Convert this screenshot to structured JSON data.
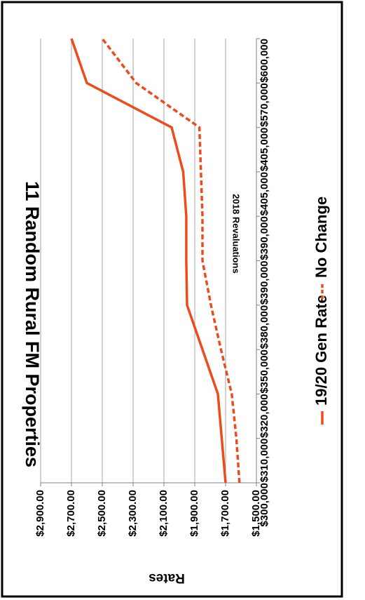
{
  "chart_data": {
    "type": "line",
    "title": "11 Random Rural FM Properties",
    "subtitle": "",
    "xlabel": "",
    "ylabel": "Rates",
    "ylim": [
      1500,
      2900
    ],
    "grid": true,
    "legend_position": "bottom",
    "annotations": [
      "2018 Revaluations"
    ],
    "categories": [
      "$300,000",
      "$310,000",
      "$320,000",
      "$350,000",
      "$380,000",
      "$390,000",
      "$390,000",
      "$405,000",
      "$405,000",
      "$570,000",
      "$600,000"
    ],
    "y_ticks": [
      "$1,500.00",
      "$1,700.00",
      "$1,900.00",
      "$2,100.00",
      "$2,300.00",
      "$2,500.00",
      "$2,700.00",
      "$2,900.00"
    ],
    "series": [
      {
        "name": "19/20 Gen Rate",
        "style": "solid",
        "color": "#ee4b1c",
        "values": [
          1700,
          1725,
          1750,
          1850,
          1950,
          1955,
          1955,
          1975,
          2050,
          2600,
          2700
        ]
      },
      {
        "name": "No Change",
        "style": "dashed",
        "color": "#ee4b1c",
        "values": [
          1610,
          1630,
          1660,
          1730,
          1795,
          1850,
          1850,
          1860,
          1870,
          2280,
          2500
        ]
      }
    ]
  }
}
